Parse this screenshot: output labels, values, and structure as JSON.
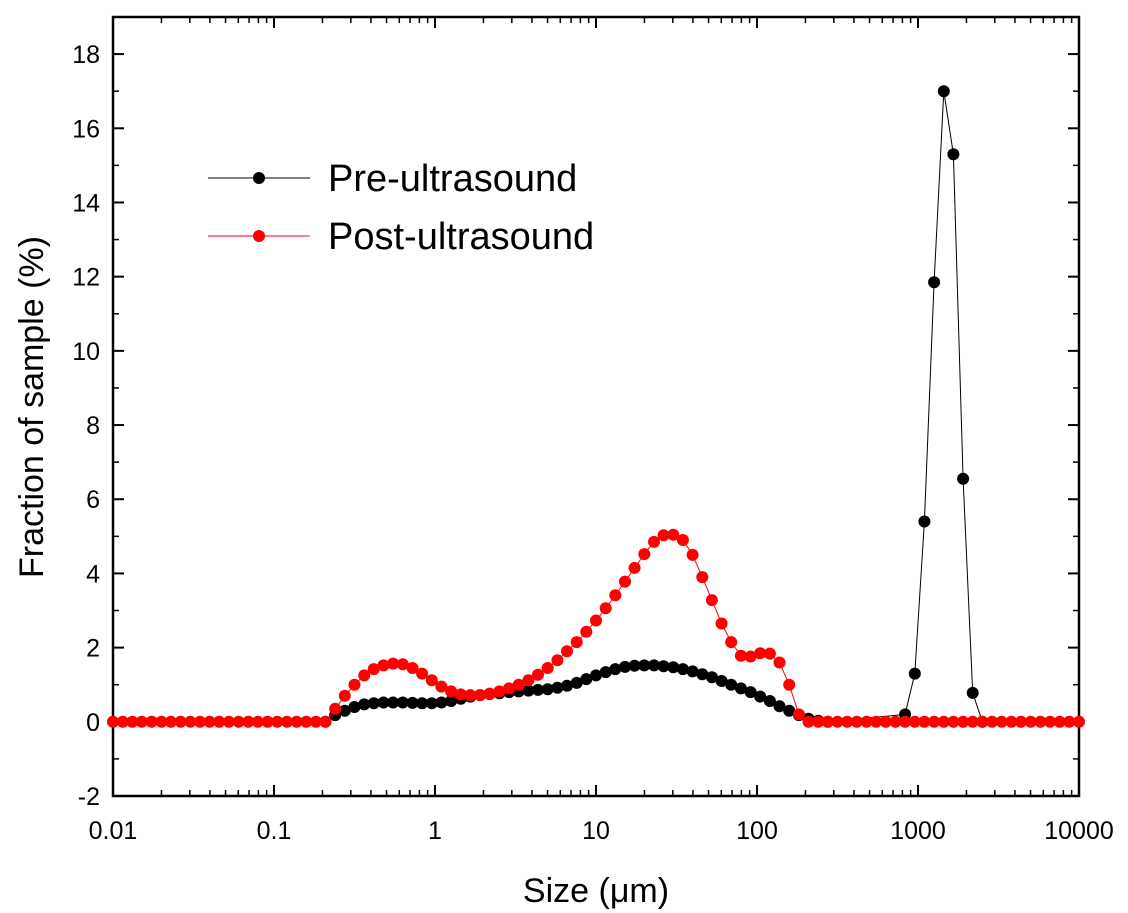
{
  "chart_data": {
    "type": "scatter",
    "xlabel": "Size (μm)",
    "ylabel": "Fraction of sample (%)",
    "xscale": "log",
    "xlim": [
      0.01,
      10000
    ],
    "ylim": [
      -2,
      19
    ],
    "x_ticks": [
      0.01,
      0.1,
      1,
      10,
      100,
      1000,
      10000
    ],
    "x_tick_labels": [
      "0.01",
      "0.1",
      "1",
      "10",
      "100",
      "1000",
      "10000"
    ],
    "y_ticks": [
      -2,
      0,
      2,
      4,
      6,
      8,
      10,
      12,
      14,
      16,
      18
    ],
    "y_tick_labels": [
      "-2",
      "0",
      "2",
      "4",
      "6",
      "8",
      "10",
      "12",
      "14",
      "16",
      "18"
    ],
    "grid": false,
    "legend_position": "top-left",
    "series": [
      {
        "name": "Pre-ultrasound",
        "color": "#000000",
        "x": [
          0.2089,
          0.2399,
          0.2754,
          0.3162,
          0.3631,
          0.4169,
          0.4786,
          0.5495,
          0.631,
          0.7244,
          0.8318,
          0.955,
          1.0965,
          1.2589,
          1.4454,
          1.6596,
          1.9055,
          2.1878,
          2.5119,
          2.884,
          3.3113,
          3.8019,
          4.3652,
          5.0119,
          5.7544,
          6.6069,
          7.5858,
          8.7096,
          10.0,
          11.4815,
          13.1826,
          15.1356,
          17.378,
          19.9526,
          22.9087,
          26.3027,
          30.1995,
          34.6737,
          39.8107,
          45.7088,
          52.4807,
          60.256,
          69.1831,
          79.4328,
          91.2011,
          104.7129,
          120.2264,
          138.0384,
          158.4893,
          181.9701,
          208.9296,
          239.8833,
          275.4229,
          831.7638,
          955.0,
          1096.48,
          1258.93,
          1445.44,
          1659.59,
          1905.46,
          2187.76,
          2511.89
        ],
        "y": [
          0.0,
          0.18,
          0.3,
          0.4,
          0.47,
          0.5,
          0.52,
          0.52,
          0.52,
          0.51,
          0.5,
          0.5,
          0.52,
          0.56,
          0.62,
          0.68,
          0.72,
          0.75,
          0.77,
          0.8,
          0.82,
          0.84,
          0.86,
          0.88,
          0.92,
          0.97,
          1.05,
          1.15,
          1.25,
          1.34,
          1.42,
          1.48,
          1.51,
          1.52,
          1.52,
          1.5,
          1.47,
          1.42,
          1.36,
          1.28,
          1.2,
          1.1,
          1.0,
          0.9,
          0.8,
          0.68,
          0.56,
          0.42,
          0.3,
          0.18,
          0.08,
          0.03,
          0.0,
          0.2,
          1.3,
          5.4,
          11.85,
          17.0,
          15.3,
          6.55,
          0.78,
          0.0
        ]
      },
      {
        "name": "Post-ultrasound",
        "color": "#ff0000",
        "x": [
          0.01,
          0.0115,
          0.0132,
          0.0151,
          0.0174,
          0.02,
          0.0229,
          0.0263,
          0.0302,
          0.0347,
          0.0398,
          0.0457,
          0.0525,
          0.0603,
          0.0692,
          0.0794,
          0.0912,
          0.1047,
          0.1202,
          0.138,
          0.1585,
          0.182,
          0.2089,
          0.2399,
          0.2754,
          0.3162,
          0.3631,
          0.4169,
          0.4786,
          0.5495,
          0.631,
          0.7244,
          0.8318,
          0.955,
          1.0965,
          1.2589,
          1.4454,
          1.6596,
          1.9055,
          2.1878,
          2.5119,
          2.884,
          3.3113,
          3.8019,
          4.3652,
          5.0119,
          5.7544,
          6.6069,
          7.5858,
          8.7096,
          10.0,
          11.4815,
          13.1826,
          15.1356,
          17.378,
          19.9526,
          22.9087,
          26.3027,
          30.1995,
          34.6737,
          39.8107,
          45.7088,
          52.4807,
          60.256,
          69.1831,
          79.4328,
          91.2011,
          104.7129,
          120.2264,
          138.0384,
          158.4893,
          181.9701,
          208.9296,
          239.8833,
          275.4229,
          316.2278,
          363.0781,
          416.8694,
          478.6301,
          549.5409,
          630.9573,
          724.436,
          831.7638,
          954.9926,
          1096.48,
          1258.93,
          1445.44,
          1659.59,
          1905.46,
          2187.76,
          2511.89,
          2884.03,
          3311.31,
          3801.89,
          4365.16,
          5011.87,
          5754.4,
          6606.93,
          7585.78,
          8709.64,
          10000.0
        ],
        "y": [
          0,
          0,
          0,
          0,
          0,
          0,
          0,
          0,
          0,
          0,
          0,
          0,
          0,
          0,
          0,
          0,
          0,
          0,
          0,
          0,
          0,
          0,
          0.0,
          0.35,
          0.7,
          1.0,
          1.25,
          1.42,
          1.52,
          1.57,
          1.55,
          1.45,
          1.3,
          1.12,
          0.95,
          0.82,
          0.74,
          0.72,
          0.72,
          0.76,
          0.82,
          0.9,
          1.0,
          1.12,
          1.27,
          1.45,
          1.66,
          1.9,
          2.15,
          2.43,
          2.73,
          3.06,
          3.41,
          3.78,
          4.15,
          4.52,
          4.85,
          5.03,
          5.04,
          4.9,
          4.5,
          3.9,
          3.28,
          2.65,
          2.15,
          1.78,
          1.76,
          1.85,
          1.84,
          1.6,
          1.0,
          0.2,
          0.0,
          0,
          0,
          0,
          0,
          0,
          0,
          0,
          0,
          0,
          0,
          0,
          0,
          0,
          0,
          0,
          0,
          0,
          0,
          0,
          0,
          0,
          0,
          0,
          0,
          0,
          0,
          0,
          0
        ]
      }
    ]
  }
}
